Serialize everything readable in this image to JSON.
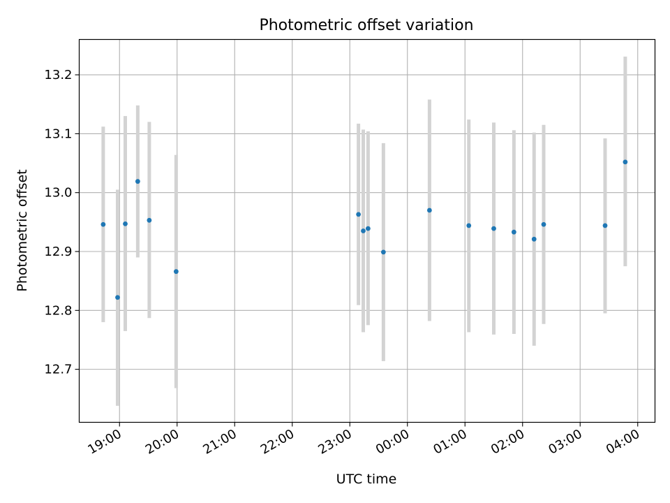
{
  "chart_data": {
    "type": "scatter",
    "title": "Photometric offset variation",
    "xlabel": "UTC time",
    "ylabel": "Photometric offset",
    "x_tick_labels": [
      "19:00",
      "20:00",
      "21:00",
      "22:00",
      "23:00",
      "00:00",
      "01:00",
      "02:00",
      "03:00",
      "04:00"
    ],
    "x_range_hours": [
      18.3,
      28.3
    ],
    "y_ticks": [
      12.7,
      12.8,
      12.9,
      13.0,
      13.1,
      13.2
    ],
    "y_tick_labels": [
      "12.7",
      "12.8",
      "12.9",
      "13.0",
      "13.1",
      "13.2"
    ],
    "ylim": [
      12.61,
      13.26
    ],
    "grid": true,
    "legend": "none",
    "colors": {
      "points": "#1f77b4",
      "error_bars": "#d3d3d3",
      "grid": "#b0b0b0",
      "axes": "#000000"
    },
    "points": [
      {
        "time": "18:43",
        "y": 12.946,
        "err_low": 12.78,
        "err_high": 13.112
      },
      {
        "time": "18:58",
        "y": 12.822,
        "err_low": 12.638,
        "err_high": 13.005
      },
      {
        "time": "19:06",
        "y": 12.947,
        "err_low": 12.765,
        "err_high": 13.13
      },
      {
        "time": "19:19",
        "y": 13.019,
        "err_low": 12.89,
        "err_high": 13.148
      },
      {
        "time": "19:31",
        "y": 12.953,
        "err_low": 12.787,
        "err_high": 13.12
      },
      {
        "time": "19:59",
        "y": 12.866,
        "err_low": 12.668,
        "err_high": 13.064
      },
      {
        "time": "23:09",
        "y": 12.963,
        "err_low": 12.809,
        "err_high": 13.117
      },
      {
        "time": "23:14",
        "y": 12.935,
        "err_low": 12.763,
        "err_high": 13.107
      },
      {
        "time": "23:19",
        "y": 12.939,
        "err_low": 12.775,
        "err_high": 13.104
      },
      {
        "time": "23:35",
        "y": 12.899,
        "err_low": 12.714,
        "err_high": 13.084
      },
      {
        "time": "00:23",
        "y": 12.97,
        "err_low": 12.782,
        "err_high": 13.158
      },
      {
        "time": "01:04",
        "y": 12.944,
        "err_low": 12.763,
        "err_high": 13.124
      },
      {
        "time": "01:30",
        "y": 12.939,
        "err_low": 12.759,
        "err_high": 13.119
      },
      {
        "time": "01:51",
        "y": 12.933,
        "err_low": 12.76,
        "err_high": 13.106
      },
      {
        "time": "02:12",
        "y": 12.921,
        "err_low": 12.74,
        "err_high": 13.102
      },
      {
        "time": "02:22",
        "y": 12.946,
        "err_low": 12.777,
        "err_high": 13.115
      },
      {
        "time": "03:26",
        "y": 12.944,
        "err_low": 12.795,
        "err_high": 13.092
      },
      {
        "time": "03:47",
        "y": 13.052,
        "err_low": 12.875,
        "err_high": 13.231
      }
    ]
  }
}
